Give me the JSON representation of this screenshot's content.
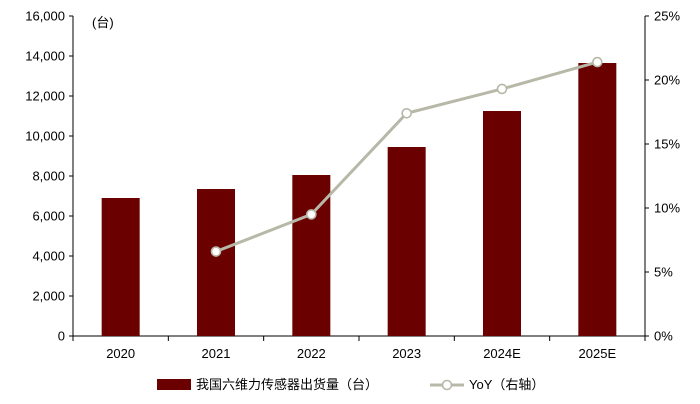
{
  "chart_data": {
    "type": "bar",
    "categories": [
      "2020",
      "2021",
      "2022",
      "2023",
      "2024E",
      "2025E"
    ],
    "series": [
      {
        "name": "我国六维力传感器出货量（台）",
        "type": "bar",
        "axis": "left",
        "color": "#6b0000",
        "values": [
          6900,
          7350,
          8050,
          9450,
          11250,
          13650
        ]
      },
      {
        "name": "YoY（右轴）",
        "type": "line",
        "axis": "right",
        "color": "#b8b8a8",
        "unit": "%",
        "values": [
          null,
          6.6,
          9.5,
          17.4,
          19.3,
          21.4
        ]
      }
    ],
    "y_left": {
      "unit_label": "(台)",
      "min": 0,
      "max": 16000,
      "step": 2000,
      "ticks": [
        "0",
        "2,000",
        "4,000",
        "6,000",
        "8,000",
        "10,000",
        "12,000",
        "14,000",
        "16,000"
      ]
    },
    "y_right": {
      "min": 0,
      "max": 25,
      "step": 5,
      "ticks": [
        "0%",
        "5%",
        "10%",
        "15%",
        "20%",
        "25%"
      ]
    },
    "grid": false,
    "legend_position": "bottom"
  }
}
